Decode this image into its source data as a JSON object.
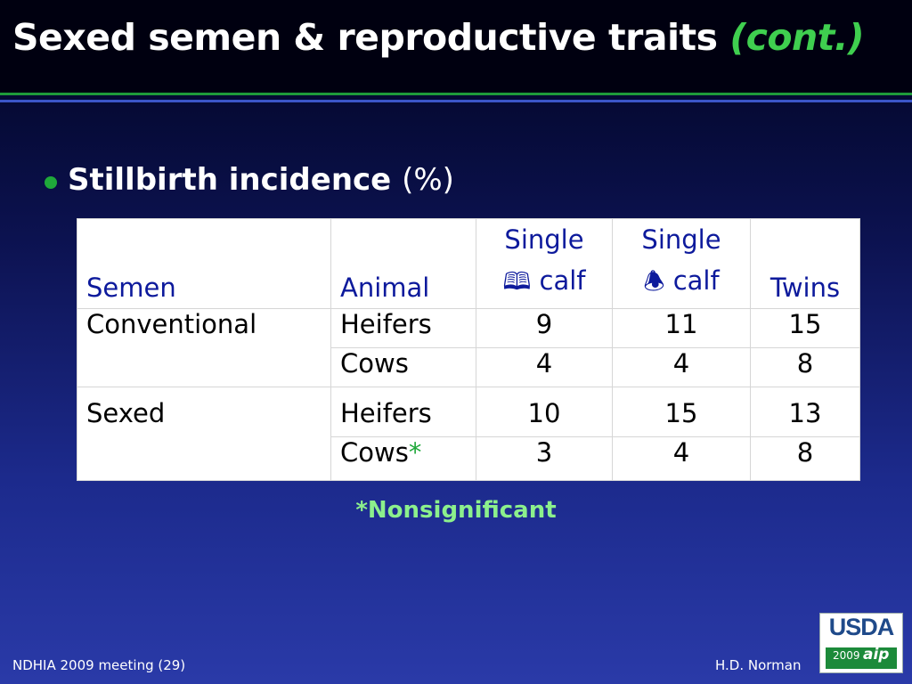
{
  "slide": {
    "title_main": "Sexed semen & reproductive traits ",
    "title_cont": "(cont.)",
    "bullet_main": "Stillbirth incidence ",
    "bullet_pct": "(%)",
    "note": "*Nonsignificant",
    "footer_left": "NDHIA 2009 meeting (29)",
    "footer_right": "H.D. Norman",
    "colors": {
      "accent_green": "#1fa83a",
      "header_blue": "#0d1a9c",
      "note_green": "#8cf08c"
    }
  },
  "table": {
    "headers": {
      "semen": "Semen",
      "animal": "Animal",
      "single_male_top": "Single",
      "single_male_icon": "🕮",
      "single_male_bottom": "calf",
      "single_female_top": "Single",
      "single_female_icon": "🕭",
      "single_female_bottom": "calf",
      "twins": "Twins"
    },
    "rows": [
      {
        "semen": "Conventional",
        "animal": "Heifers",
        "star": "",
        "single_male": "9",
        "single_female": "11",
        "twins": "15"
      },
      {
        "semen": "",
        "animal": "Cows",
        "star": "",
        "single_male": "4",
        "single_female": "4",
        "twins": "8"
      },
      {
        "semen": "Sexed",
        "animal": "Heifers",
        "star": "",
        "single_male": "10",
        "single_female": "15",
        "twins": "13"
      },
      {
        "semen": "",
        "animal": "Cows",
        "star": "*",
        "single_male": "3",
        "single_female": "4",
        "twins": "8"
      }
    ]
  },
  "logo": {
    "text": "USDA",
    "year": "2009",
    "mark": "aip"
  }
}
